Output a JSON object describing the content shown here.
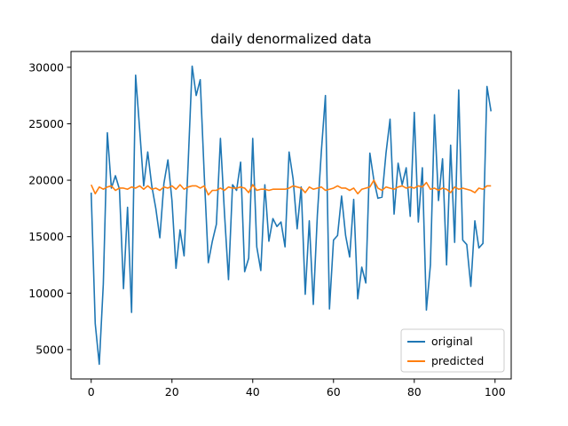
{
  "chart_data": {
    "type": "line",
    "title": "daily denormalized data",
    "xlabel": "",
    "ylabel": "",
    "xlim": [
      -5,
      104
    ],
    "ylim": [
      2400,
      31400
    ],
    "xticks": [
      0,
      20,
      40,
      60,
      80,
      100
    ],
    "yticks": [
      5000,
      10000,
      15000,
      20000,
      25000,
      30000
    ],
    "grid": false,
    "legend_position": "lower right",
    "series": [
      {
        "name": "original",
        "color": "#1f77b4",
        "x": [
          0,
          1,
          2,
          3,
          4,
          5,
          6,
          7,
          8,
          9,
          10,
          11,
          12,
          13,
          14,
          15,
          16,
          17,
          18,
          19,
          20,
          21,
          22,
          23,
          24,
          25,
          26,
          27,
          28,
          29,
          30,
          31,
          32,
          33,
          34,
          35,
          36,
          37,
          38,
          39,
          40,
          41,
          42,
          43,
          44,
          45,
          46,
          47,
          48,
          49,
          50,
          51,
          52,
          53,
          54,
          55,
          56,
          57,
          58,
          59,
          60,
          61,
          62,
          63,
          64,
          65,
          66,
          67,
          68,
          69,
          70,
          71,
          72,
          73,
          74,
          75,
          76,
          77,
          78,
          79,
          80,
          81,
          82,
          83,
          84,
          85,
          86,
          87,
          88,
          89,
          90,
          91,
          92,
          93,
          94,
          95,
          96,
          97,
          98,
          99
        ],
        "values": [
          18900,
          7300,
          3700,
          10800,
          24200,
          19300,
          20400,
          19200,
          10400,
          17600,
          8300,
          29300,
          24500,
          19500,
          22500,
          19500,
          17500,
          14900,
          19700,
          21800,
          18200,
          12200,
          15600,
          13300,
          21400,
          30100,
          27500,
          28900,
          20400,
          12700,
          14600,
          16100,
          23700,
          17100,
          11200,
          19600,
          19100,
          21600,
          11900,
          13100,
          23700,
          14100,
          12000,
          19600,
          14600,
          16600,
          15900,
          16300,
          14100,
          22500,
          20100,
          15700,
          19400,
          9900,
          16400,
          9000,
          16900,
          22600,
          27500,
          8600,
          14700,
          15100,
          18600,
          15100,
          13200,
          18300,
          9500,
          12300,
          10900,
          22400,
          20000,
          18400,
          18500,
          22400,
          25400,
          17000,
          21500,
          19600,
          21100,
          16800,
          26000,
          16300,
          21100,
          8500,
          12500,
          25800,
          18200,
          21900,
          12500,
          23100,
          14500,
          28000,
          14700,
          14300,
          10600,
          16400,
          14000,
          14400,
          28300,
          26100
        ]
      },
      {
        "name": "predicted",
        "color": "#ff7f0e",
        "x": [
          0,
          1,
          2,
          3,
          4,
          5,
          6,
          7,
          8,
          9,
          10,
          11,
          12,
          13,
          14,
          15,
          16,
          17,
          18,
          19,
          20,
          21,
          22,
          23,
          24,
          25,
          26,
          27,
          28,
          29,
          30,
          31,
          32,
          33,
          34,
          35,
          36,
          37,
          38,
          39,
          40,
          41,
          42,
          43,
          44,
          45,
          46,
          47,
          48,
          49,
          50,
          51,
          52,
          53,
          54,
          55,
          56,
          57,
          58,
          59,
          60,
          61,
          62,
          63,
          64,
          65,
          66,
          67,
          68,
          69,
          70,
          71,
          72,
          73,
          74,
          75,
          76,
          77,
          78,
          79,
          80,
          81,
          82,
          83,
          84,
          85,
          86,
          87,
          88,
          89,
          90,
          91,
          92,
          93,
          94,
          95,
          96,
          97,
          98,
          99
        ],
        "values": [
          19600,
          18800,
          19400,
          19200,
          19400,
          19500,
          19100,
          19300,
          19300,
          19200,
          19400,
          19300,
          19500,
          19200,
          19500,
          19200,
          19300,
          19100,
          19400,
          19300,
          19500,
          19200,
          19600,
          19200,
          19400,
          19500,
          19500,
          19300,
          19500,
          18700,
          19100,
          19100,
          19300,
          19100,
          19400,
          19300,
          19300,
          19400,
          19300,
          18900,
          19600,
          19100,
          19200,
          19200,
          19100,
          19200,
          19200,
          19200,
          19200,
          19300,
          19500,
          19400,
          19300,
          18900,
          19400,
          19200,
          19300,
          19400,
          19100,
          19200,
          19300,
          19500,
          19300,
          19300,
          19100,
          19300,
          18800,
          19200,
          19300,
          19400,
          20000,
          19300,
          19100,
          19400,
          19300,
          19200,
          19400,
          19500,
          19300,
          19400,
          19300,
          19500,
          19400,
          19800,
          19200,
          19300,
          19100,
          19300,
          19200,
          18900,
          19400,
          19200,
          19300,
          19200,
          19100,
          18900,
          19300,
          19200,
          19500,
          19500
        ]
      }
    ]
  }
}
